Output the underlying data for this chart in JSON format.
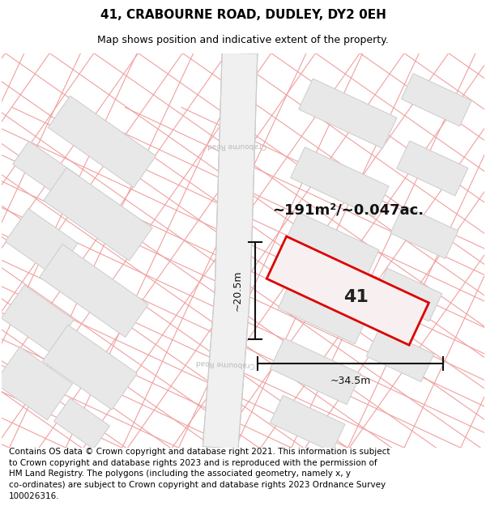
{
  "title": "41, CRABOURNE ROAD, DUDLEY, DY2 0EH",
  "subtitle": "Map shows position and indicative extent of the property.",
  "footer": "Contains OS data © Crown copyright and database right 2021. This information is subject\nto Crown copyright and database rights 2023 and is reproduced with the permission of\nHM Land Registry. The polygons (including the associated geometry, namely x, y\nco-ordinates) are subject to Crown copyright and database rights 2023 Ordnance Survey\n100026316.",
  "road_label_upper": "Crabourne Road",
  "road_label_lower": "Crabourne Road",
  "area_label": "~191m²/~0.047ac.",
  "plot_label": "41",
  "dim_width": "~34.5m",
  "dim_height": "~20.5m",
  "map_bg": "#ffffff",
  "building_face": "#e8e8e8",
  "building_edge": "#cccccc",
  "road_face": "#f0f0f0",
  "road_edge": "#cccccc",
  "prop_line_color": "#f0a0a0",
  "plot_edge": "#dd0000",
  "plot_face": "#f8f0f0",
  "road_label_color": "#bbbbbb",
  "dim_color": "#111111",
  "title_fontsize": 11,
  "subtitle_fontsize": 9,
  "footer_fontsize": 7.5,
  "area_fontsize": 13,
  "plot_label_fontsize": 16,
  "dim_fontsize": 9
}
